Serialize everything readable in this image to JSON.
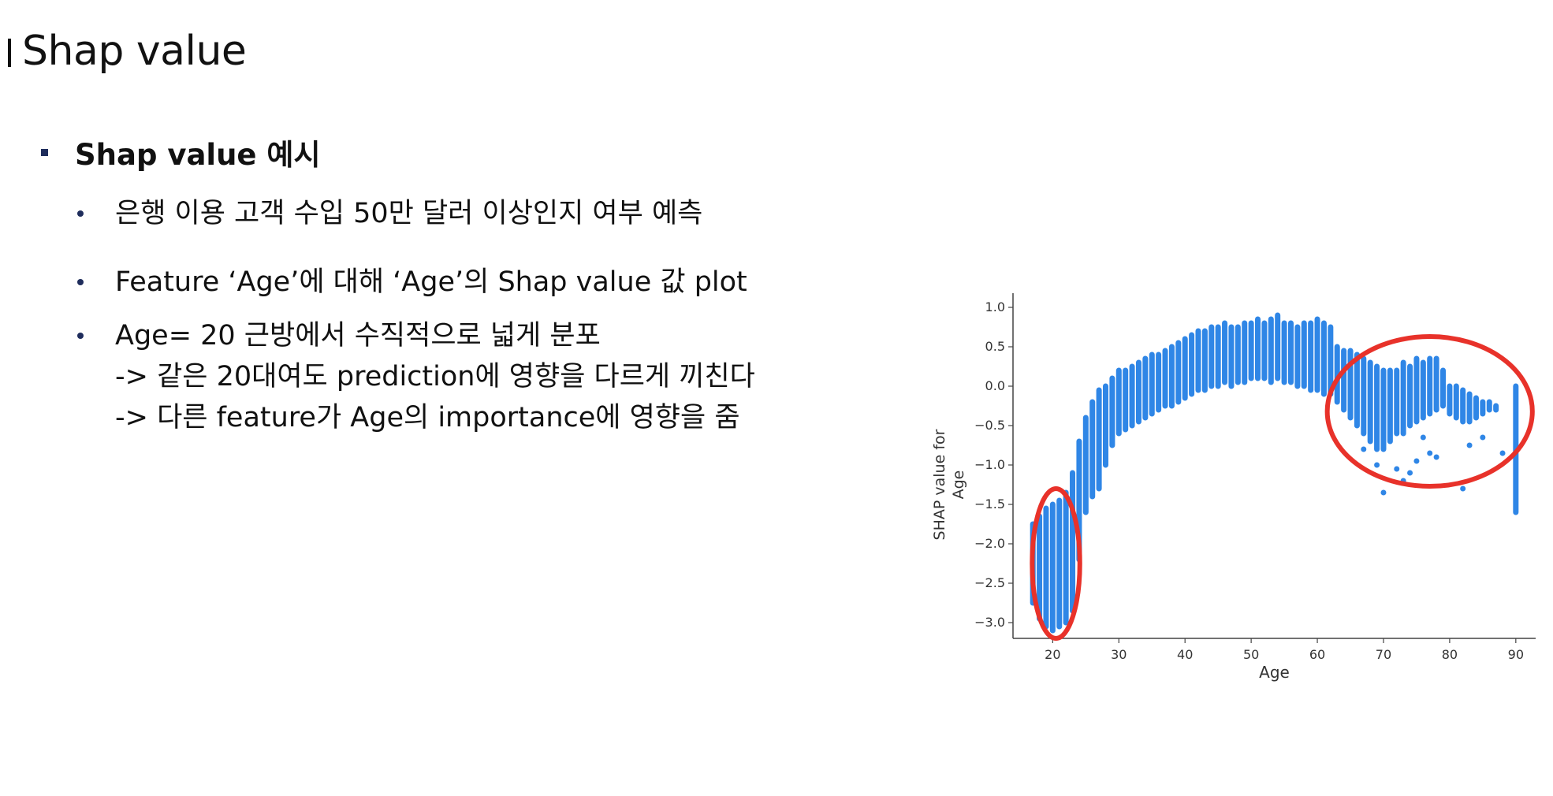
{
  "slide": {
    "title": "Shap value",
    "section_title": "Shap value 예시",
    "bullets": [
      {
        "lines": [
          "은행 이용 고객 수입 50만 달러 이상인지 여부 예측"
        ]
      },
      {
        "lines": [
          "Feature ‘Age’에 대해 ‘Age’의 Shap value 값 plot"
        ]
      },
      {
        "lines": [
          "Age= 20 근방에서 수직적으로 넓게 분포",
          "-> 같은 20대여도 prediction에 영향을 다르게 끼친다",
          "-> 다른 feature가 Age의 importance에 영향을 줌"
        ]
      }
    ]
  },
  "chart_data": {
    "type": "scatter",
    "xlabel": "Age",
    "ylabel_lines": [
      "SHAP value for",
      "Age"
    ],
    "xlim": [
      14,
      93
    ],
    "ylim": [
      -3.2,
      1.1
    ],
    "xticks": [
      20,
      30,
      40,
      50,
      60,
      70,
      80,
      90
    ],
    "yticks": [
      1.0,
      0.5,
      0.0,
      -0.5,
      -1.0,
      -1.5,
      -2.0,
      -2.5,
      -3.0
    ],
    "ytick_labels": [
      "1.0",
      "0.5",
      "0.0",
      "−0.5",
      "−1.0",
      "−1.5",
      "−2.0",
      "−2.5",
      "−3.0"
    ],
    "point_color": "#2f86e6",
    "highlight_color": "#e8322a",
    "distribution": [
      {
        "age": 17,
        "y_min": -2.75,
        "y_max": -1.75
      },
      {
        "age": 18,
        "y_min": -2.95,
        "y_max": -1.65
      },
      {
        "age": 19,
        "y_min": -3.05,
        "y_max": -1.55
      },
      {
        "age": 20,
        "y_min": -3.1,
        "y_max": -1.5
      },
      {
        "age": 21,
        "y_min": -3.05,
        "y_max": -1.45
      },
      {
        "age": 22,
        "y_min": -3.0,
        "y_max": -1.35
      },
      {
        "age": 23,
        "y_min": -2.85,
        "y_max": -1.1
      },
      {
        "age": 24,
        "y_min": -2.2,
        "y_max": -0.7
      },
      {
        "age": 25,
        "y_min": -1.6,
        "y_max": -0.4
      },
      {
        "age": 26,
        "y_min": -1.4,
        "y_max": -0.2
      },
      {
        "age": 27,
        "y_min": -1.3,
        "y_max": -0.05
      },
      {
        "age": 28,
        "y_min": -1.0,
        "y_max": 0.0
      },
      {
        "age": 29,
        "y_min": -0.75,
        "y_max": 0.1
      },
      {
        "age": 30,
        "y_min": -0.6,
        "y_max": 0.2
      },
      {
        "age": 31,
        "y_min": -0.55,
        "y_max": 0.2
      },
      {
        "age": 32,
        "y_min": -0.5,
        "y_max": 0.25
      },
      {
        "age": 33,
        "y_min": -0.45,
        "y_max": 0.3
      },
      {
        "age": 34,
        "y_min": -0.4,
        "y_max": 0.35
      },
      {
        "age": 35,
        "y_min": -0.35,
        "y_max": 0.4
      },
      {
        "age": 36,
        "y_min": -0.3,
        "y_max": 0.4
      },
      {
        "age": 37,
        "y_min": -0.25,
        "y_max": 0.45
      },
      {
        "age": 38,
        "y_min": -0.25,
        "y_max": 0.5
      },
      {
        "age": 39,
        "y_min": -0.2,
        "y_max": 0.55
      },
      {
        "age": 40,
        "y_min": -0.15,
        "y_max": 0.6
      },
      {
        "age": 41,
        "y_min": -0.1,
        "y_max": 0.65
      },
      {
        "age": 42,
        "y_min": -0.05,
        "y_max": 0.7
      },
      {
        "age": 43,
        "y_min": -0.05,
        "y_max": 0.7
      },
      {
        "age": 44,
        "y_min": 0.0,
        "y_max": 0.75
      },
      {
        "age": 45,
        "y_min": 0.0,
        "y_max": 0.75
      },
      {
        "age": 46,
        "y_min": 0.05,
        "y_max": 0.8
      },
      {
        "age": 47,
        "y_min": 0.0,
        "y_max": 0.75
      },
      {
        "age": 48,
        "y_min": 0.05,
        "y_max": 0.75
      },
      {
        "age": 49,
        "y_min": 0.05,
        "y_max": 0.8
      },
      {
        "age": 50,
        "y_min": 0.1,
        "y_max": 0.8
      },
      {
        "age": 51,
        "y_min": 0.1,
        "y_max": 0.85
      },
      {
        "age": 52,
        "y_min": 0.1,
        "y_max": 0.8
      },
      {
        "age": 53,
        "y_min": 0.05,
        "y_max": 0.85
      },
      {
        "age": 54,
        "y_min": 0.1,
        "y_max": 0.9
      },
      {
        "age": 55,
        "y_min": 0.05,
        "y_max": 0.8
      },
      {
        "age": 56,
        "y_min": 0.05,
        "y_max": 0.8
      },
      {
        "age": 57,
        "y_min": 0.0,
        "y_max": 0.75
      },
      {
        "age": 58,
        "y_min": 0.0,
        "y_max": 0.8
      },
      {
        "age": 59,
        "y_min": -0.05,
        "y_max": 0.8
      },
      {
        "age": 60,
        "y_min": -0.05,
        "y_max": 0.85
      },
      {
        "age": 61,
        "y_min": -0.1,
        "y_max": 0.8
      },
      {
        "age": 62,
        "y_min": -0.1,
        "y_max": 0.75
      },
      {
        "age": 63,
        "y_min": -0.2,
        "y_max": 0.5
      },
      {
        "age": 64,
        "y_min": -0.3,
        "y_max": 0.45
      },
      {
        "age": 65,
        "y_min": -0.4,
        "y_max": 0.45
      },
      {
        "age": 66,
        "y_min": -0.5,
        "y_max": 0.4
      },
      {
        "age": 67,
        "y_min": -0.6,
        "y_max": 0.35
      },
      {
        "age": 68,
        "y_min": -0.7,
        "y_max": 0.3
      },
      {
        "age": 69,
        "y_min": -0.8,
        "y_max": 0.25
      },
      {
        "age": 70,
        "y_min": -0.8,
        "y_max": 0.2
      },
      {
        "age": 71,
        "y_min": -0.7,
        "y_max": 0.2
      },
      {
        "age": 72,
        "y_min": -0.6,
        "y_max": 0.2
      },
      {
        "age": 73,
        "y_min": -0.6,
        "y_max": 0.3
      },
      {
        "age": 74,
        "y_min": -0.5,
        "y_max": 0.25
      },
      {
        "age": 75,
        "y_min": -0.45,
        "y_max": 0.35
      },
      {
        "age": 76,
        "y_min": -0.4,
        "y_max": 0.3
      },
      {
        "age": 77,
        "y_min": -0.35,
        "y_max": 0.35
      },
      {
        "age": 78,
        "y_min": -0.3,
        "y_max": 0.35
      },
      {
        "age": 79,
        "y_min": -0.25,
        "y_max": 0.2
      },
      {
        "age": 80,
        "y_min": -0.35,
        "y_max": 0.0
      },
      {
        "age": 81,
        "y_min": -0.4,
        "y_max": 0.0
      },
      {
        "age": 82,
        "y_min": -0.45,
        "y_max": -0.05
      },
      {
        "age": 83,
        "y_min": -0.45,
        "y_max": -0.1
      },
      {
        "age": 84,
        "y_min": -0.4,
        "y_max": -0.15
      },
      {
        "age": 85,
        "y_min": -0.35,
        "y_max": -0.2
      },
      {
        "age": 86,
        "y_min": -0.3,
        "y_max": -0.2
      },
      {
        "age": 87,
        "y_min": -0.3,
        "y_max": -0.25
      },
      {
        "age": 90,
        "y_min": -1.6,
        "y_max": 0.0
      }
    ],
    "outliers": [
      {
        "age": 67,
        "y": -0.8
      },
      {
        "age": 69,
        "y": -1.0
      },
      {
        "age": 70,
        "y": -1.35
      },
      {
        "age": 72,
        "y": -1.05
      },
      {
        "age": 73,
        "y": -1.2
      },
      {
        "age": 74,
        "y": -1.1
      },
      {
        "age": 75,
        "y": -0.95
      },
      {
        "age": 76,
        "y": -0.65
      },
      {
        "age": 77,
        "y": -0.85
      },
      {
        "age": 78,
        "y": -0.9
      },
      {
        "age": 82,
        "y": -1.3
      },
      {
        "age": 83,
        "y": -0.75
      },
      {
        "age": 85,
        "y": -0.65
      },
      {
        "age": 88,
        "y": -0.85
      }
    ],
    "highlights": [
      {
        "label": "",
        "cx": 20.5,
        "cy": -2.25,
        "rx": 3.6,
        "ry": 0.95
      },
      {
        "label": "",
        "cx": 77,
        "cy": -0.32,
        "rx": 15.5,
        "ry": 0.95
      }
    ]
  }
}
